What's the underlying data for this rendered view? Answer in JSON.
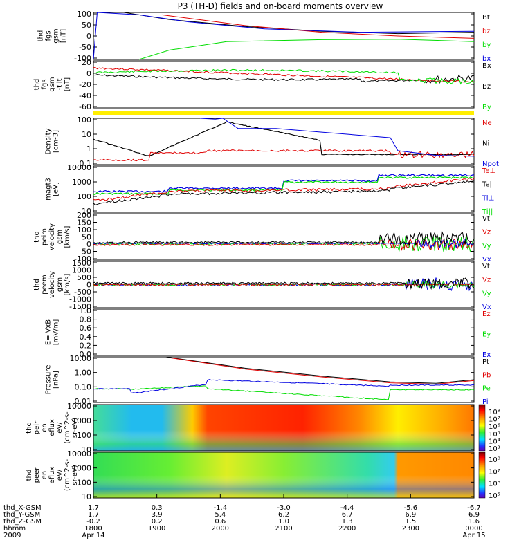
{
  "title": "P3 (TH-D) fields and on-board moments overview",
  "colors": {
    "black": "#000000",
    "red": "#e00000",
    "green": "#00dd00",
    "blue": "#0000e0",
    "yellow": "#ffee00"
  },
  "chart_data": {
    "type": "line",
    "x_tick_labels": [
      "1800",
      "1900",
      "2000",
      "2100",
      "2200",
      "2300",
      "0000"
    ],
    "x_sublabels": {
      "first": "Apr 14",
      "last": "Apr 15"
    },
    "ephemeris": {
      "labels": [
        "thd_X-GSM",
        "thd_Y-GSM",
        "thd_Z-GSM",
        "hhmm",
        "2009"
      ],
      "rows": [
        [
          "1.7",
          "0.3",
          "-1.4",
          "-3.0",
          "-4.4",
          "-5.6",
          "-6.7"
        ],
        [
          "1.7",
          "3.9",
          "5.4",
          "6.2",
          "6.7",
          "6.9",
          "6.9"
        ],
        [
          "-0.2",
          "0.2",
          "0.6",
          "1.0",
          "1.3",
          "1.5",
          "1.6"
        ]
      ]
    },
    "panels": [
      {
        "ylabel": [
          "thd",
          "fgs",
          "gsm",
          "[nT]"
        ],
        "yticks": [
          "100",
          "50",
          "0",
          "-50",
          "-100"
        ],
        "legend": [
          {
            "text": "Bt",
            "color": "black"
          },
          {
            "text": "bz",
            "color": "red"
          },
          {
            "text": "by",
            "color": "green"
          },
          {
            "text": "bx",
            "color": "blue"
          }
        ],
        "ylim": [
          -100,
          100
        ]
      },
      {
        "ylabel": [
          "thd",
          "fgs",
          "gsm",
          "-tilt",
          "[nT]"
        ],
        "yticks": [
          "20",
          "0",
          "-20",
          "-40",
          "-60"
        ],
        "legend": [
          {
            "text": "Bx",
            "color": "black"
          },
          {
            "text": "Bz",
            "color": "black"
          },
          {
            "text": "By",
            "color": "green"
          }
        ],
        "ylim": [
          -70,
          25
        ]
      },
      {
        "ylabel": [
          "Density",
          "[cm-3]"
        ],
        "yticks": [
          "100",
          "10",
          "1",
          "0.1"
        ],
        "legend": [
          {
            "text": "Ne",
            "color": "red"
          },
          {
            "text": "Ni",
            "color": "black"
          },
          {
            "text": "Npot",
            "color": "blue"
          }
        ],
        "ylim": [
          0.1,
          100
        ],
        "yscale": "log"
      },
      {
        "ylabel": [
          "magt3",
          "[eV]"
        ],
        "yticks": [
          "10000",
          "1000",
          "100",
          "10"
        ],
        "legend": [
          {
            "text": "Te⊥",
            "color": "red"
          },
          {
            "text": "Te||",
            "color": "black"
          },
          {
            "text": "Ti⊥",
            "color": "blue"
          },
          {
            "text": "Ti||",
            "color": "green"
          }
        ],
        "ylim": [
          10,
          10000
        ],
        "yscale": "log"
      },
      {
        "ylabel": [
          "thd",
          "peim",
          "velocity",
          "gsm",
          "[km/s]"
        ],
        "yticks": [
          "200",
          "150",
          "100",
          "50",
          "0",
          "-50",
          "-100"
        ],
        "legend": [
          {
            "text": "Vt",
            "color": "black"
          },
          {
            "text": "Vz",
            "color": "red"
          },
          {
            "text": "Vy",
            "color": "green"
          },
          {
            "text": "Vx",
            "color": "blue"
          }
        ],
        "ylim": [
          -100,
          200
        ]
      },
      {
        "ylabel": [
          "thd",
          "peem",
          "velocity",
          "gsm",
          "[km/s]"
        ],
        "yticks": [
          "1500",
          "1000",
          "500",
          "0",
          "-500",
          "-1000",
          "-1500"
        ],
        "legend": [
          {
            "text": "Vt",
            "color": "black"
          },
          {
            "text": "Vz",
            "color": "red"
          },
          {
            "text": "Vy",
            "color": "green"
          },
          {
            "text": "Vx",
            "color": "blue"
          }
        ],
        "ylim": [
          -1500,
          1500
        ]
      },
      {
        "ylabel": [
          "E=-VxB",
          "[mV/m]"
        ],
        "yticks": [
          "1.0",
          "0.8",
          "0.6",
          "0.4",
          "0.2",
          "0.0"
        ],
        "legend": [
          {
            "text": "Ez",
            "color": "red"
          },
          {
            "text": "Ey",
            "color": "green"
          },
          {
            "text": "Ex",
            "color": "blue"
          }
        ],
        "ylim": [
          0,
          1
        ]
      },
      {
        "ylabel": [
          "Pressure",
          "[nPa]"
        ],
        "yticks": [
          "10.00",
          "1.00",
          "0.10",
          "0.01"
        ],
        "legend": [
          {
            "text": "Pt",
            "color": "black"
          },
          {
            "text": "Pb",
            "color": "red"
          },
          {
            "text": "Pe",
            "color": "green"
          },
          {
            "text": "Pi",
            "color": "blue"
          }
        ],
        "ylim": [
          0.01,
          10
        ],
        "yscale": "log"
      },
      {
        "type": "heatmap",
        "ylabel": [
          "thd",
          "peir",
          "en",
          "eflux",
          "eV/",
          "(cm^2-s-",
          "sr-eV)"
        ],
        "yticks": [
          "10000",
          "1000",
          "100",
          "10"
        ],
        "colorbar_ticks": [
          "10⁸",
          "10⁷",
          "10⁶",
          "10⁵",
          "10⁴",
          "10³"
        ],
        "yscale": "log"
      },
      {
        "type": "heatmap",
        "ylabel": [
          "thd",
          "peer",
          "en",
          "eflux",
          "eV/",
          "(cm^2-s-",
          "sr-eV)"
        ],
        "yticks": [
          "10000",
          "1000",
          "100",
          "10"
        ],
        "colorbar_ticks": [
          "10⁸",
          "10⁷",
          "10⁶",
          "10⁵"
        ],
        "yscale": "log"
      }
    ]
  }
}
